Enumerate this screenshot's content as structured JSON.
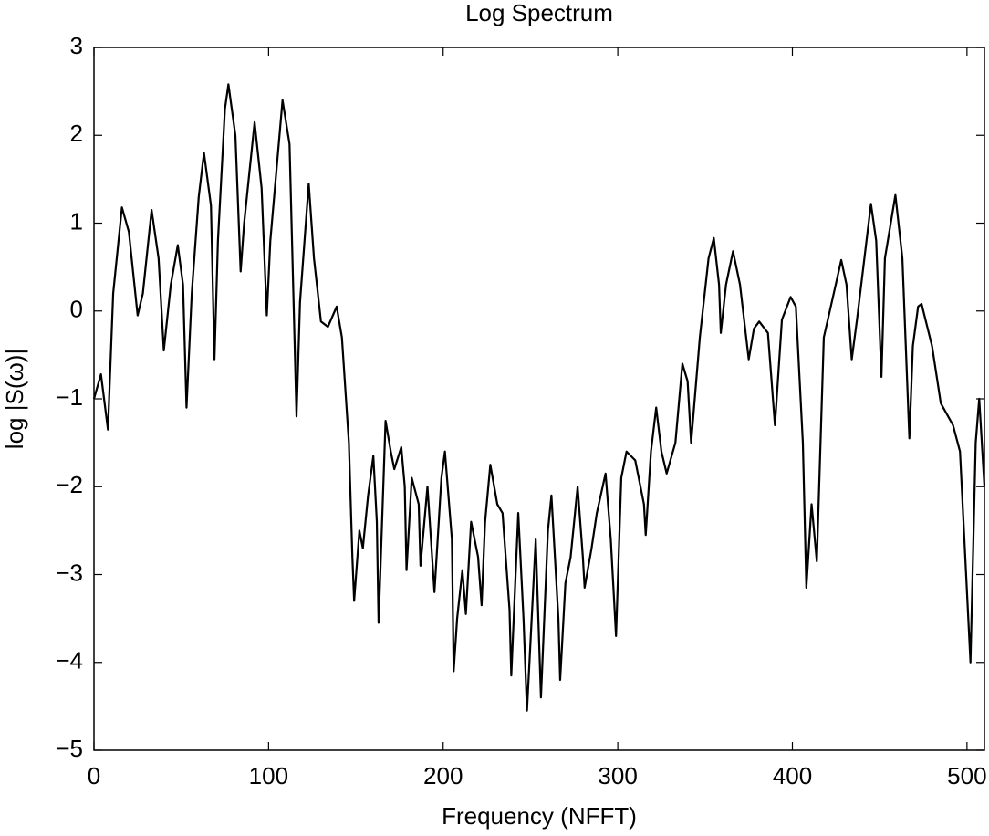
{
  "chart_data": {
    "type": "line",
    "title": "Log Spectrum",
    "x_label": "Frequency (NFFT)",
    "y_label": "log |S(ω)|",
    "xlim": [
      0,
      510
    ],
    "ylim": [
      -5,
      3
    ],
    "xticks": [
      0,
      100,
      200,
      300,
      400,
      500
    ],
    "yticks": [
      {
        "value": -5,
        "label": "−5"
      },
      {
        "value": -4,
        "label": "−4"
      },
      {
        "value": -3,
        "label": "−3"
      },
      {
        "value": -2,
        "label": "−2"
      },
      {
        "value": -1,
        "label": "−1"
      },
      0,
      1,
      2,
      3
    ],
    "grid": false,
    "series": [
      {
        "color": "#000000",
        "x": [
          0,
          4,
          8,
          11,
          16,
          20,
          25,
          28,
          33,
          37,
          40,
          44,
          48,
          51,
          53,
          56,
          60,
          63,
          67,
          69,
          71,
          75,
          77,
          81,
          84,
          86,
          92,
          96,
          99,
          101,
          108,
          112,
          116,
          118,
          123,
          126,
          130,
          134,
          139,
          142,
          146,
          148,
          149,
          152,
          154,
          157,
          160,
          162,
          163,
          167,
          170,
          172,
          176,
          178,
          179,
          182,
          186,
          187,
          191,
          195,
          199,
          201,
          205,
          206,
          208,
          211,
          213,
          216,
          220,
          222,
          224,
          227,
          231,
          234,
          238,
          239,
          243,
          246,
          248,
          253,
          256,
          260,
          262,
          266,
          267,
          270,
          273,
          277,
          280,
          281,
          285,
          288,
          293,
          296,
          299,
          302,
          305,
          310,
          315,
          316,
          319,
          322,
          325,
          328,
          333,
          337,
          340,
          342,
          347,
          352,
          355,
          358,
          359,
          362,
          366,
          370,
          375,
          378,
          381,
          386,
          390,
          394,
          399,
          402,
          406,
          408,
          411,
          414,
          418,
          422,
          428,
          431,
          434,
          437,
          445,
          448,
          451,
          453,
          459,
          463,
          467,
          469,
          472,
          474,
          480,
          485,
          492,
          496,
          499,
          502,
          505,
          507,
          510
        ],
        "values": [
          -1.0,
          -0.72,
          -1.35,
          0.2,
          1.18,
          0.9,
          -0.05,
          0.2,
          1.15,
          0.6,
          -0.45,
          0.3,
          0.75,
          0.3,
          -1.1,
          0.2,
          1.3,
          1.8,
          1.2,
          -0.55,
          0.8,
          2.3,
          2.58,
          2.0,
          0.45,
          1.0,
          2.15,
          1.4,
          -0.05,
          0.8,
          2.4,
          1.9,
          -1.2,
          0.1,
          1.45,
          0.6,
          -0.12,
          -0.18,
          0.05,
          -0.3,
          -1.5,
          -2.8,
          -3.3,
          -2.5,
          -2.7,
          -2.1,
          -1.65,
          -2.4,
          -3.55,
          -1.25,
          -1.6,
          -1.8,
          -1.55,
          -2.0,
          -2.95,
          -1.9,
          -2.2,
          -2.9,
          -2.0,
          -3.2,
          -1.9,
          -1.6,
          -2.6,
          -4.1,
          -3.5,
          -2.95,
          -3.45,
          -2.4,
          -2.8,
          -3.35,
          -2.4,
          -1.75,
          -2.2,
          -2.3,
          -3.4,
          -4.15,
          -2.3,
          -3.5,
          -4.55,
          -2.6,
          -4.4,
          -2.5,
          -2.1,
          -3.5,
          -4.2,
          -3.1,
          -2.8,
          -2.0,
          -2.8,
          -3.15,
          -2.7,
          -2.3,
          -1.85,
          -2.6,
          -3.7,
          -1.9,
          -1.6,
          -1.7,
          -2.2,
          -2.55,
          -1.6,
          -1.1,
          -1.6,
          -1.85,
          -1.5,
          -0.6,
          -0.8,
          -1.5,
          -0.3,
          0.6,
          0.83,
          0.3,
          -0.25,
          0.3,
          0.68,
          0.3,
          -0.55,
          -0.2,
          -0.12,
          -0.25,
          -1.3,
          -0.1,
          0.16,
          0.05,
          -1.5,
          -3.15,
          -2.2,
          -2.85,
          -0.3,
          0.05,
          0.58,
          0.3,
          -0.55,
          -0.1,
          1.22,
          0.8,
          -0.75,
          0.6,
          1.32,
          0.6,
          -1.45,
          -0.4,
          0.05,
          0.08,
          -0.4,
          -1.05,
          -1.3,
          -1.6,
          -2.8,
          -4.0,
          -1.5,
          -1.0,
          -2.0
        ]
      }
    ]
  }
}
